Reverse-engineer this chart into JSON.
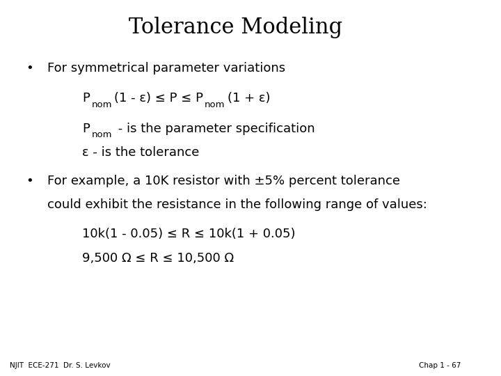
{
  "title": "Tolerance Modeling",
  "title_fontsize": 22,
  "background_color": "#ffffff",
  "text_color": "#000000",
  "footer_left": "NJIT  ECE-271  Dr. S. Levkov",
  "footer_right": "Chap 1 - 67",
  "footer_fontsize": 7.5,
  "bullet1_line1": "For symmetrical parameter variations",
  "bullet1_indent2a_rest": " - is the parameter specification",
  "bullet1_indent2b": "ε - is the tolerance",
  "bullet2_line1": "For example, a 10K resistor with ±5% percent tolerance",
  "bullet2_line2": "could exhibit the resistance in the following range of values:",
  "bullet2_indent1": "10k(1 - 0.05) ≤ R ≤ 10k(1 + 0.05)",
  "bullet2_indent2": "9,500 Ω ≤ R ≤ 10,500 Ω",
  "body_fontsize": 13,
  "sub_fontsize": 9.5
}
